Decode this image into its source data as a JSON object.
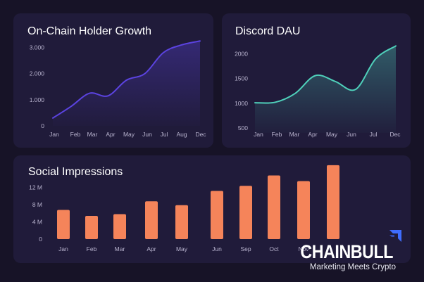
{
  "brand": {
    "name": "CHAINBULL",
    "tagline": "Marketing Meets Crypto",
    "mark_icon": "upward-arrow-icon",
    "mark_color": "#3f6dff"
  },
  "colors": {
    "page_background": "#171327",
    "card_background": "#201b3a",
    "holder_line": "#5b43e0",
    "discord_line": "#4fd1bb",
    "bars": "#f5845a",
    "text": "#ffffff",
    "tick_text": "#b9b4cf"
  },
  "chart_data": [
    {
      "id": "holders",
      "type": "area",
      "title": "On-Chain Holder Growth",
      "xlabel": "",
      "ylabel": "",
      "categories": [
        "Jan",
        "Feb",
        "Mar",
        "Apr",
        "May",
        "Jun",
        "Jul",
        "Aug",
        "Dec"
      ],
      "values": [
        300,
        750,
        1250,
        1150,
        1750,
        2000,
        2800,
        3100,
        3250
      ],
      "ylim": [
        0,
        3500
      ],
      "y_ticks": [
        0,
        1000,
        2000,
        3000
      ],
      "y_tick_labels": [
        "0",
        "1.000",
        "2.000",
        "3.000"
      ],
      "grid": false,
      "legend": "none",
      "color": "#5b43e0"
    },
    {
      "id": "discord",
      "type": "area",
      "title": "Discord DAU",
      "xlabel": "",
      "ylabel": "",
      "categories": [
        "Jan",
        "Feb",
        "Mar",
        "Apr",
        "May",
        "Jun",
        "Jul",
        "Dec"
      ],
      "values": [
        1010,
        1020,
        1200,
        1560,
        1440,
        1280,
        1900,
        2160
      ],
      "ylim": [
        400,
        2250
      ],
      "y_ticks": [
        500,
        1000,
        1500,
        2000
      ],
      "y_tick_labels": [
        "500",
        "1000",
        "1500",
        "2000"
      ],
      "grid": false,
      "legend": "none",
      "color": "#4fd1bb"
    },
    {
      "id": "impressions",
      "type": "bar",
      "title": "Social Impressions",
      "xlabel": "",
      "ylabel": "",
      "categories": [
        "Jan",
        "Feb",
        "Mar",
        "Apr",
        "May",
        "Jun",
        "Sep",
        "Oct",
        "Nov",
        ""
      ],
      "values": [
        6.8,
        5.4,
        5.8,
        8.8,
        7.9,
        11.2,
        12.4,
        14.8,
        13.5,
        17.2
      ],
      "ylim": [
        0,
        18
      ],
      "y_ticks": [
        0,
        4,
        8,
        12
      ],
      "y_tick_labels": [
        "0",
        "4 M",
        "8 M",
        "12 M"
      ],
      "grid": false,
      "legend": "none",
      "color": "#f5845a"
    }
  ]
}
